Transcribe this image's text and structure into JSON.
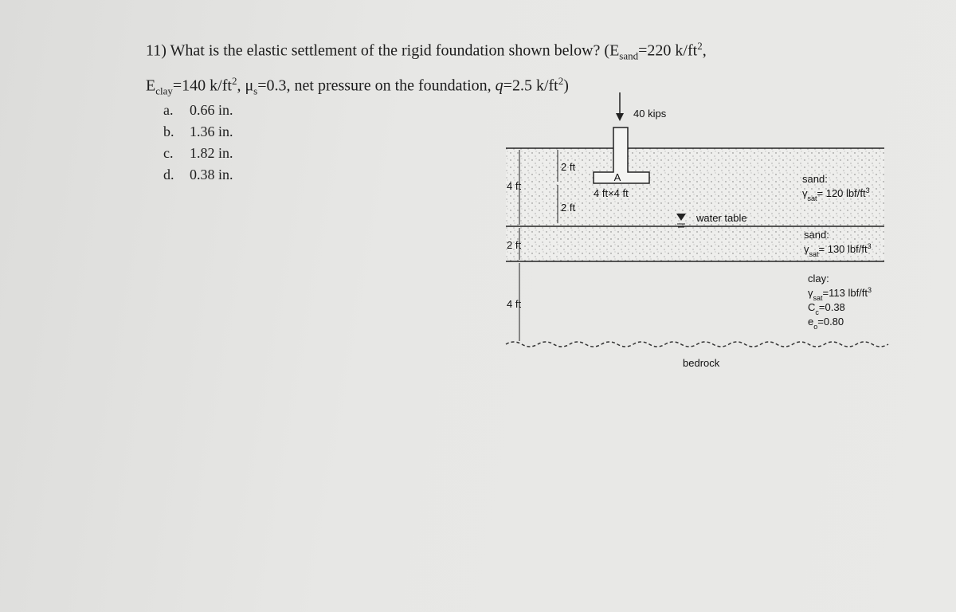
{
  "question": {
    "lines": [
      [
        {
          "t": "11) What is the elastic settlement of the rigid foundation shown below? (E"
        },
        {
          "sub": "sand"
        },
        {
          "t": "=220 k/ft"
        },
        {
          "sup": "2"
        },
        {
          "t": ","
        }
      ],
      [
        {
          "t": "E"
        },
        {
          "sub": "clay"
        },
        {
          "t": "=140 k/ft"
        },
        {
          "sup": "2"
        },
        {
          "t": ", μ"
        },
        {
          "sub": "s"
        },
        {
          "t": "=0.3, net pressure on the foundation, "
        },
        {
          "i": "q"
        },
        {
          "t": "=2.5 k/ft"
        },
        {
          "sup": "2"
        },
        {
          "t": ")"
        }
      ]
    ]
  },
  "options": [
    {
      "letter": "a.",
      "answer": "0.66 in."
    },
    {
      "letter": "b.",
      "answer": "1.36 in."
    },
    {
      "letter": "c.",
      "answer": "1.82 in."
    },
    {
      "letter": "d.",
      "answer": "0.38 in."
    }
  ],
  "diagram": {
    "load": "40 kips",
    "point": "A",
    "footing_size": "4 ft×4 ft",
    "footing_depth": "2 ft",
    "below_footing": "2 ft",
    "layer_dims": [
      "4 ft",
      "2 ft",
      "4 ft"
    ],
    "water_table": "water table",
    "bedrock": "bedrock",
    "layers": [
      {
        "lines": [
          [
            {
              "t": "sand:"
            }
          ],
          [
            {
              "t": "γ"
            },
            {
              "sub": "sat"
            },
            {
              "t": "= 120 lbf/ft"
            },
            {
              "sup": "3"
            }
          ]
        ]
      },
      {
        "lines": [
          [
            {
              "t": "sand:"
            }
          ],
          [
            {
              "t": "γ"
            },
            {
              "sub": "sat"
            },
            {
              "t": "= 130 lbf/ft"
            },
            {
              "sup": "3"
            }
          ]
        ]
      },
      {
        "lines": [
          [
            {
              "t": "clay:"
            }
          ],
          [
            {
              "t": "γ"
            },
            {
              "sub": "sat"
            },
            {
              "t": "=113 lbf/ft"
            },
            {
              "sup": "3"
            }
          ],
          [
            {
              "t": "C"
            },
            {
              "sub": "c"
            },
            {
              "t": "=0.38"
            }
          ],
          [
            {
              "t": "e"
            },
            {
              "sub": "o"
            },
            {
              "t": "=0.80"
            }
          ]
        ]
      }
    ]
  }
}
